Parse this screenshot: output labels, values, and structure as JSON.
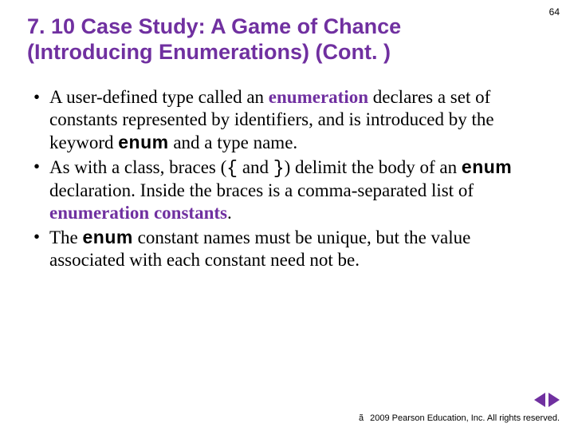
{
  "colors": {
    "accent": "#7030a0",
    "text": "#000000",
    "background": "#ffffff"
  },
  "typography": {
    "title_font": "Arial",
    "title_size_pt": 27,
    "title_weight": "bold",
    "body_font": "Times New Roman",
    "body_size_pt": 23,
    "footer_size_pt": 11,
    "pagenum_size_pt": 12
  },
  "page_number": "64",
  "title": "7. 10  Case Study: A Game of Chance (Introducing Enumerations) (Cont. )",
  "bullets": [
    {
      "segments": [
        {
          "t": "A user-defined type called an ",
          "cls": ""
        },
        {
          "t": "enumeration",
          "cls": "term"
        },
        {
          "t": " declares a set of constants represented by identifiers, and is introduced by the keyword ",
          "cls": ""
        },
        {
          "t": "enum",
          "cls": "kw"
        },
        {
          "t": " and a type name.",
          "cls": ""
        }
      ]
    },
    {
      "segments": [
        {
          "t": "As with a class, braces (",
          "cls": ""
        },
        {
          "t": "{",
          "cls": "mono"
        },
        {
          "t": " and ",
          "cls": ""
        },
        {
          "t": "}",
          "cls": "mono"
        },
        {
          "t": ") delimit the body of an ",
          "cls": ""
        },
        {
          "t": "enum",
          "cls": "kw"
        },
        {
          "t": " declaration. Inside the braces is a comma-separated list of ",
          "cls": ""
        },
        {
          "t": "enumeration constants",
          "cls": "term"
        },
        {
          "t": ".",
          "cls": ""
        }
      ]
    },
    {
      "segments": [
        {
          "t": "The ",
          "cls": ""
        },
        {
          "t": "enum",
          "cls": "kw"
        },
        {
          "t": " constant names must be unique, but the value associated with each constant need not be.",
          "cls": ""
        }
      ]
    }
  ],
  "footer": {
    "copyright_symbol": "ã",
    "text": "2009 Pearson Education, Inc.  All rights reserved."
  },
  "nav": {
    "prev_icon": "triangle-left",
    "next_icon": "triangle-right"
  }
}
